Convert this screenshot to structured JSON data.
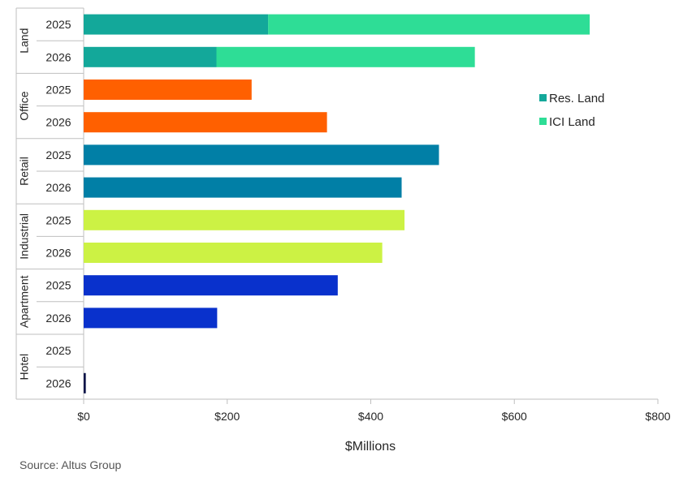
{
  "chart_data": {
    "type": "bar",
    "orientation": "horizontal",
    "stacked": true,
    "xlabel": "$Millions",
    "xlim": [
      0,
      800
    ],
    "xticks": [
      0,
      200,
      400,
      600,
      800
    ],
    "xtick_labels": [
      "$0",
      "$200",
      "$400",
      "$600",
      "$800"
    ],
    "grid": false,
    "legend_position": "right",
    "legend": [
      {
        "name": "Res. Land",
        "color": "#13A89A"
      },
      {
        "name": "ICI Land",
        "color": "#2EDD96"
      }
    ],
    "groups": [
      {
        "name": "Land",
        "rows": [
          {
            "year": "2025",
            "segments": [
              {
                "series": "Res. Land",
                "value": 257,
                "color": "#13A89A"
              },
              {
                "series": "ICI Land",
                "value": 448,
                "color": "#2EDD96"
              }
            ]
          },
          {
            "year": "2026",
            "segments": [
              {
                "series": "Res. Land",
                "value": 185,
                "color": "#13A89A"
              },
              {
                "series": "ICI Land",
                "value": 360,
                "color": "#2EDD96"
              }
            ]
          }
        ]
      },
      {
        "name": "Office",
        "rows": [
          {
            "year": "2025",
            "segments": [
              {
                "value": 234,
                "color": "#FF6000"
              }
            ]
          },
          {
            "year": "2026",
            "segments": [
              {
                "value": 339,
                "color": "#FF6000"
              }
            ]
          }
        ]
      },
      {
        "name": "Retail",
        "rows": [
          {
            "year": "2025",
            "segments": [
              {
                "value": 495,
                "color": "#017FA6"
              }
            ]
          },
          {
            "year": "2026",
            "segments": [
              {
                "value": 443,
                "color": "#017FA6"
              }
            ]
          }
        ]
      },
      {
        "name": "Industrial",
        "rows": [
          {
            "year": "2025",
            "segments": [
              {
                "value": 447,
                "color": "#CCF244"
              }
            ]
          },
          {
            "year": "2026",
            "segments": [
              {
                "value": 416,
                "color": "#CCF244"
              }
            ]
          }
        ]
      },
      {
        "name": "Apartment",
        "rows": [
          {
            "year": "2025",
            "segments": [
              {
                "value": 354,
                "color": "#0931CC"
              }
            ]
          },
          {
            "year": "2026",
            "segments": [
              {
                "value": 186,
                "color": "#0931CC"
              }
            ]
          }
        ]
      },
      {
        "name": "Hotel",
        "rows": [
          {
            "year": "2025",
            "segments": []
          },
          {
            "year": "2026",
            "segments": [
              {
                "value": 3,
                "color": "#0A1448"
              }
            ]
          }
        ]
      }
    ]
  },
  "source": "Source:  Altus Group"
}
